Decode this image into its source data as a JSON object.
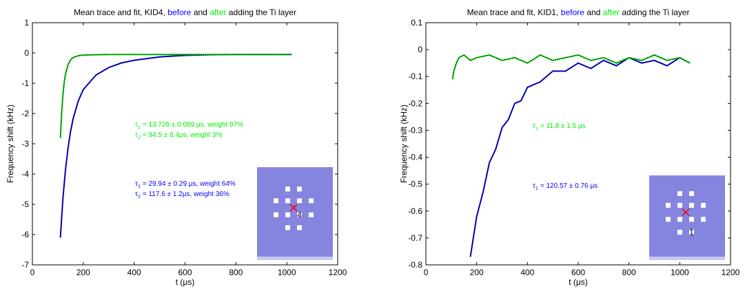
{
  "chart_data": [
    {
      "type": "line",
      "title": [
        {
          "text": "Mean trace and fit, KID4,",
          "color": "#000000"
        },
        {
          "text": "before",
          "color": "#0000ff"
        },
        {
          "text": "and",
          "color": "#000000"
        },
        {
          "text": "after",
          "color": "#00ee00"
        },
        {
          "text": "adding the Ti layer",
          "color": "#000000"
        }
      ],
      "x_label": "t (μs)",
      "y_label": "Frequency shift (kHz)",
      "xlim": [
        0,
        1200
      ],
      "xticks": [
        0,
        200,
        400,
        600,
        800,
        1000,
        1200
      ],
      "ylim": [
        -7,
        1
      ],
      "yticks": [
        -7,
        -6,
        -5,
        -4,
        -3,
        -2,
        -1,
        0,
        1
      ],
      "series": [
        {
          "color": "#0000ff",
          "x": [
            110,
            120,
            130,
            140,
            150,
            160,
            180,
            200,
            250,
            300,
            350,
            400,
            500,
            600,
            700,
            800,
            900,
            1020
          ],
          "values": [
            -6.1,
            -4.81,
            -3.86,
            -3.14,
            -2.59,
            -2.17,
            -1.59,
            -1.21,
            -0.73,
            -0.48,
            -0.33,
            -0.24,
            -0.13,
            -0.08,
            -0.06,
            -0.05,
            -0.05,
            -0.05
          ]
        },
        {
          "color": "#00ee00",
          "x": [
            110,
            115,
            120,
            125,
            130,
            140,
            150,
            160,
            180,
            200,
            250,
            300,
            400,
            600,
            800,
            1020
          ],
          "values": [
            -2.8,
            -1.97,
            -1.39,
            -0.98,
            -0.7,
            -0.39,
            -0.23,
            -0.15,
            -0.09,
            -0.07,
            -0.06,
            -0.05,
            -0.05,
            -0.05,
            -0.05,
            -0.05
          ]
        }
      ],
      "annotations": [
        {
          "symbol": "τ",
          "sub": "1",
          "text": "= 13.726 ± 0.089 μs, weight 97%",
          "color": "#00ee00"
        },
        {
          "symbol": "τ",
          "sub": "2",
          "text": "= 94.5 ± 8.4μs, weight 3%",
          "color": "#00ee00"
        },
        {
          "symbol": "τ",
          "sub": "1",
          "text": "= 29.94 ± 0.29 μs, weight 64%",
          "color": "#0000ff"
        },
        {
          "symbol": "τ",
          "sub": "2",
          "text": "= 117.6 ± 1.2μs, weight 36%",
          "color": "#0000ff"
        }
      ],
      "inset_label": "4"
    },
    {
      "type": "line",
      "title": [
        {
          "text": "Mean trace and fit, KID1,",
          "color": "#000000"
        },
        {
          "text": "before",
          "color": "#0000ff"
        },
        {
          "text": "and",
          "color": "#000000"
        },
        {
          "text": "after",
          "color": "#00ee00"
        },
        {
          "text": "adding the Ti layer",
          "color": "#000000"
        }
      ],
      "x_label": "t (μs)",
      "y_label": "Frequency shift (kHz)",
      "xlim": [
        0,
        1200
      ],
      "xticks": [
        0,
        200,
        400,
        600,
        800,
        1000,
        1200
      ],
      "ylim": [
        -0.8,
        0.1
      ],
      "yticks": [
        -0.8,
        -0.7,
        -0.6,
        -0.5,
        -0.4,
        -0.3,
        -0.2,
        -0.1,
        0,
        0.1
      ],
      "series": [
        {
          "color": "#0000ff",
          "x": [
            175,
            200,
            225,
            250,
            275,
            300,
            325,
            350,
            375,
            400,
            450,
            500,
            550,
            600,
            650,
            700,
            750,
            800,
            850,
            900,
            950,
            1000,
            1040
          ],
          "values": [
            -0.77,
            -0.62,
            -0.53,
            -0.42,
            -0.37,
            -0.29,
            -0.26,
            -0.2,
            -0.19,
            -0.14,
            -0.12,
            -0.08,
            -0.08,
            -0.05,
            -0.07,
            -0.04,
            -0.06,
            -0.03,
            -0.05,
            -0.04,
            -0.06,
            -0.03,
            -0.05
          ]
        },
        {
          "color": "#00ee00",
          "x": [
            105,
            110,
            120,
            130,
            150,
            175,
            200,
            250,
            300,
            350,
            400,
            450,
            500,
            550,
            600,
            650,
            700,
            750,
            800,
            850,
            900,
            950,
            1000,
            1040
          ],
          "values": [
            -0.11,
            -0.08,
            -0.05,
            -0.03,
            -0.02,
            -0.04,
            -0.03,
            -0.02,
            -0.04,
            -0.03,
            -0.05,
            -0.02,
            -0.04,
            -0.03,
            -0.02,
            -0.04,
            -0.03,
            -0.05,
            -0.03,
            -0.04,
            -0.02,
            -0.04,
            -0.03,
            -0.05
          ]
        }
      ],
      "annotations": [
        {
          "symbol": "τ",
          "sub": "1",
          "text": "= 11.8 ± 1.5 μs",
          "color": "#00ee00"
        },
        {
          "symbol": "τ",
          "sub": "1",
          "text": "= 120.57 ± 0.76 μs",
          "color": "#0000ff"
        }
      ],
      "inset_label": "1"
    }
  ]
}
